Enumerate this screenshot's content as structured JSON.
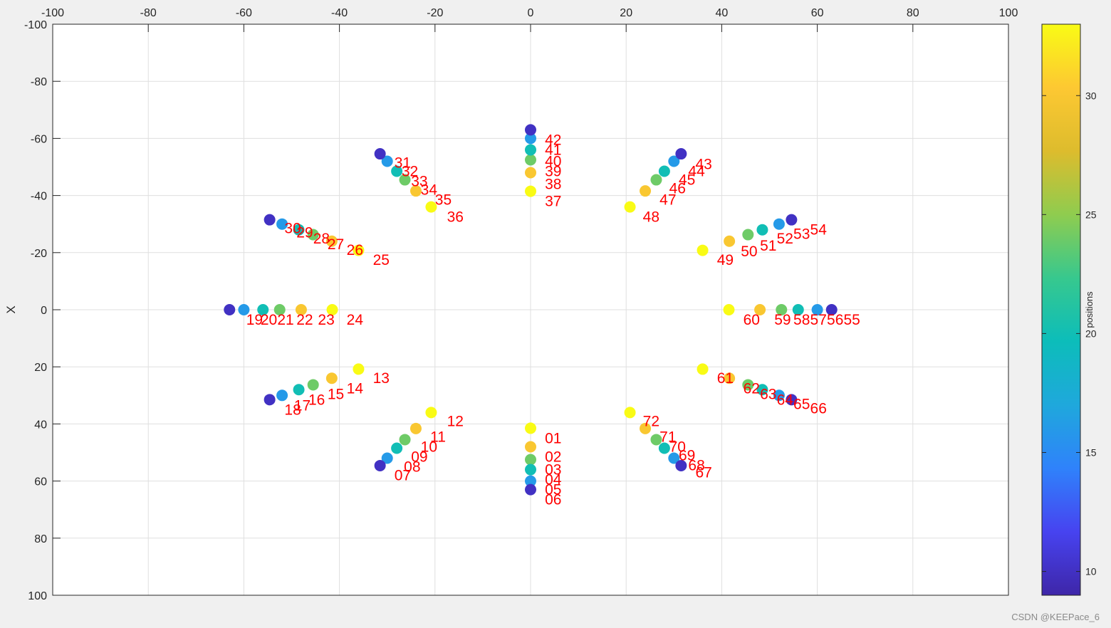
{
  "watermark": "CSDN @KEEPace_6",
  "colors": {
    "label": "#ff0000",
    "grid": "#dfdfdf",
    "axis": "#262626"
  },
  "chart_data": {
    "type": "scatter",
    "xlim": [
      -100,
      100
    ],
    "ylim": [
      -100,
      100
    ],
    "x_axis_location": "top",
    "y_direction": "reverse",
    "xticks": [
      "-100",
      "-80",
      "-60",
      "-40",
      "-20",
      "0",
      "20",
      "40",
      "60",
      "80",
      "100"
    ],
    "yticks": [
      "-100",
      "-80",
      "-60",
      "-40",
      "-20",
      "0",
      "20",
      "40",
      "60",
      "80",
      "100"
    ],
    "ylabel": "X",
    "grid": true,
    "colorbar": {
      "label": "positions",
      "range": [
        9,
        33
      ],
      "ticks": [
        "10",
        "15",
        "20",
        "25",
        "30"
      ],
      "colormap": [
        "#3e26a8",
        "#4743f0",
        "#2f82fb",
        "#1fa8dc",
        "#0cbdba",
        "#37c88e",
        "#8fcc4f",
        "#ddbc2d",
        "#fdc832",
        "#f9fb15"
      ]
    },
    "points": [
      {
        "x": 0,
        "y": 41.5,
        "c": 33
      },
      {
        "x": 0,
        "y": 48,
        "c": 30
      },
      {
        "x": 0,
        "y": 52.5,
        "c": 24
      },
      {
        "x": 0,
        "y": 56,
        "c": 20
      },
      {
        "x": 0,
        "y": 60,
        "c": 16
      },
      {
        "x": 0,
        "y": 63,
        "c": 10
      },
      {
        "x": 0,
        "y": -41.5,
        "c": 33
      },
      {
        "x": 0,
        "y": -48,
        "c": 30
      },
      {
        "x": 0,
        "y": -52.5,
        "c": 24
      },
      {
        "x": 0,
        "y": -56,
        "c": 20
      },
      {
        "x": 0,
        "y": -60,
        "c": 16
      },
      {
        "x": 0,
        "y": -63,
        "c": 10
      },
      {
        "x": -41.5,
        "y": 0,
        "c": 33
      },
      {
        "x": -48,
        "y": 0,
        "c": 30
      },
      {
        "x": -52.5,
        "y": 0,
        "c": 24
      },
      {
        "x": -56,
        "y": 0,
        "c": 20
      },
      {
        "x": -60,
        "y": 0,
        "c": 16
      },
      {
        "x": -63,
        "y": 0,
        "c": 10
      },
      {
        "x": 41.5,
        "y": 0,
        "c": 33
      },
      {
        "x": 48,
        "y": 0,
        "c": 30
      },
      {
        "x": 52.5,
        "y": 0,
        "c": 24
      },
      {
        "x": 56,
        "y": 0,
        "c": 20
      },
      {
        "x": 60,
        "y": 0,
        "c": 16
      },
      {
        "x": 63,
        "y": 0,
        "c": 10
      },
      {
        "x": -20.8,
        "y": 36,
        "c": 33
      },
      {
        "x": -24,
        "y": 41.6,
        "c": 30
      },
      {
        "x": -26.3,
        "y": 45.5,
        "c": 24
      },
      {
        "x": -28,
        "y": 48.5,
        "c": 20
      },
      {
        "x": -30,
        "y": 52,
        "c": 16
      },
      {
        "x": -31.5,
        "y": 54.6,
        "c": 10
      },
      {
        "x": 20.8,
        "y": 36,
        "c": 33
      },
      {
        "x": 24,
        "y": 41.6,
        "c": 30
      },
      {
        "x": 26.3,
        "y": 45.5,
        "c": 24
      },
      {
        "x": 28,
        "y": 48.5,
        "c": 20
      },
      {
        "x": 30,
        "y": 52,
        "c": 16
      },
      {
        "x": 31.5,
        "y": 54.6,
        "c": 10
      },
      {
        "x": -20.8,
        "y": -36,
        "c": 33
      },
      {
        "x": -24,
        "y": -41.6,
        "c": 30
      },
      {
        "x": -26.3,
        "y": -45.5,
        "c": 24
      },
      {
        "x": -28,
        "y": -48.5,
        "c": 20
      },
      {
        "x": -30,
        "y": -52,
        "c": 16
      },
      {
        "x": -31.5,
        "y": -54.6,
        "c": 10
      },
      {
        "x": 20.8,
        "y": -36,
        "c": 33
      },
      {
        "x": 24,
        "y": -41.6,
        "c": 30
      },
      {
        "x": 26.3,
        "y": -45.5,
        "c": 24
      },
      {
        "x": 28,
        "y": -48.5,
        "c": 20
      },
      {
        "x": 30,
        "y": -52,
        "c": 16
      },
      {
        "x": 31.5,
        "y": -54.6,
        "c": 10
      },
      {
        "x": -36,
        "y": 20.8,
        "c": 33
      },
      {
        "x": -41.6,
        "y": 24,
        "c": 30
      },
      {
        "x": -45.5,
        "y": 26.3,
        "c": 24
      },
      {
        "x": -48.5,
        "y": 28,
        "c": 20
      },
      {
        "x": -52,
        "y": 30,
        "c": 16
      },
      {
        "x": -54.6,
        "y": 31.5,
        "c": 10
      },
      {
        "x": 36,
        "y": 20.8,
        "c": 33
      },
      {
        "x": 41.6,
        "y": 24,
        "c": 30
      },
      {
        "x": 45.5,
        "y": 26.3,
        "c": 24
      },
      {
        "x": 48.5,
        "y": 28,
        "c": 20
      },
      {
        "x": 52,
        "y": 30,
        "c": 16
      },
      {
        "x": 54.6,
        "y": 31.5,
        "c": 10
      },
      {
        "x": -36,
        "y": -20.8,
        "c": 33
      },
      {
        "x": -41.6,
        "y": -24,
        "c": 30
      },
      {
        "x": -45.5,
        "y": -26.3,
        "c": 24
      },
      {
        "x": -48.5,
        "y": -28,
        "c": 20
      },
      {
        "x": -52,
        "y": -30,
        "c": 16
      },
      {
        "x": -54.6,
        "y": -31.5,
        "c": 10
      },
      {
        "x": 36,
        "y": -20.8,
        "c": 33
      },
      {
        "x": 41.6,
        "y": -24,
        "c": 30
      },
      {
        "x": 45.5,
        "y": -26.3,
        "c": 24
      },
      {
        "x": 48.5,
        "y": -28,
        "c": 20
      },
      {
        "x": 52,
        "y": -30,
        "c": 16
      },
      {
        "x": 54.6,
        "y": -31.5,
        "c": 10
      }
    ],
    "labels": [
      {
        "t": "01",
        "x": 3,
        "y": 45
      },
      {
        "t": "02",
        "x": 3,
        "y": 51.5
      },
      {
        "t": "03",
        "x": 3,
        "y": 56
      },
      {
        "t": "04",
        "x": 3,
        "y": 59.5
      },
      {
        "t": "05",
        "x": 3,
        "y": 63
      },
      {
        "t": "06",
        "x": 3,
        "y": 66.5
      },
      {
        "t": "07",
        "x": -28.5,
        "y": 58
      },
      {
        "t": "08",
        "x": -26.5,
        "y": 55
      },
      {
        "t": "09",
        "x": -25,
        "y": 51.5
      },
      {
        "t": "10",
        "x": -23,
        "y": 48
      },
      {
        "t": "11",
        "x": -21,
        "y": 44.5
      },
      {
        "t": "12",
        "x": -17.5,
        "y": 39
      },
      {
        "t": "13",
        "x": -33,
        "y": 24
      },
      {
        "t": "14",
        "x": -38.5,
        "y": 27.5
      },
      {
        "t": "15",
        "x": -42.5,
        "y": 29.5
      },
      {
        "t": "16",
        "x": -46.5,
        "y": 31.5
      },
      {
        "t": "17",
        "x": -49.5,
        "y": 33.5
      },
      {
        "t": "18",
        "x": -51.5,
        "y": 35
      },
      {
        "t": "19",
        "x": -59.5,
        "y": 3.5
      },
      {
        "t": "20",
        "x": -56.5,
        "y": 3.5
      },
      {
        "t": "21",
        "x": -53,
        "y": 3.5
      },
      {
        "t": "22",
        "x": -49,
        "y": 3.5
      },
      {
        "t": "23",
        "x": -44.5,
        "y": 3.5
      },
      {
        "t": "24",
        "x": -38.5,
        "y": 3.5
      },
      {
        "t": "25",
        "x": -33,
        "y": -17.5
      },
      {
        "t": "26",
        "x": -38.5,
        "y": -21
      },
      {
        "t": "27",
        "x": -42.5,
        "y": -23
      },
      {
        "t": "28",
        "x": -45.5,
        "y": -25
      },
      {
        "t": "29",
        "x": -49,
        "y": -27
      },
      {
        "t": "30",
        "x": -51.5,
        "y": -28.5
      },
      {
        "t": "31",
        "x": -28.5,
        "y": -51.5
      },
      {
        "t": "32",
        "x": -27,
        "y": -48.5
      },
      {
        "t": "33",
        "x": -25,
        "y": -45
      },
      {
        "t": "34",
        "x": -23,
        "y": -42
      },
      {
        "t": "35",
        "x": -20,
        "y": -38.5
      },
      {
        "t": "36",
        "x": -17.5,
        "y": -32.5
      },
      {
        "t": "37",
        "x": 3,
        "y": -38
      },
      {
        "t": "38",
        "x": 3,
        "y": -44
      },
      {
        "t": "39",
        "x": 3,
        "y": -48.5
      },
      {
        "t": "40",
        "x": 3,
        "y": -52
      },
      {
        "t": "41",
        "x": 3,
        "y": -56
      },
      {
        "t": "42",
        "x": 3,
        "y": -59.5
      },
      {
        "t": "43",
        "x": 34.5,
        "y": -51
      },
      {
        "t": "44",
        "x": 33,
        "y": -48.5
      },
      {
        "t": "45",
        "x": 31,
        "y": -45.5
      },
      {
        "t": "46",
        "x": 29,
        "y": -42.5
      },
      {
        "t": "47",
        "x": 27,
        "y": -38.5
      },
      {
        "t": "48",
        "x": 23.5,
        "y": -32.5
      },
      {
        "t": "49",
        "x": 39,
        "y": -17.5
      },
      {
        "t": "50",
        "x": 44,
        "y": -20.5
      },
      {
        "t": "51",
        "x": 48,
        "y": -22.5
      },
      {
        "t": "52",
        "x": 51.5,
        "y": -25
      },
      {
        "t": "53",
        "x": 55,
        "y": -26.5
      },
      {
        "t": "54",
        "x": 58.5,
        "y": -28
      },
      {
        "t": "55",
        "x": 65.5,
        "y": 3.5
      },
      {
        "t": "56",
        "x": 62,
        "y": 3.5
      },
      {
        "t": "57",
        "x": 58.5,
        "y": 3.5
      },
      {
        "t": "58",
        "x": 55,
        "y": 3.5
      },
      {
        "t": "59",
        "x": 51,
        "y": 3.5
      },
      {
        "t": "60",
        "x": 44.5,
        "y": 3.5
      },
      {
        "t": "61",
        "x": 39,
        "y": 24
      },
      {
        "t": "62",
        "x": 44.5,
        "y": 27.5
      },
      {
        "t": "63",
        "x": 48,
        "y": 29.5
      },
      {
        "t": "64",
        "x": 51.5,
        "y": 31.5
      },
      {
        "t": "65",
        "x": 55,
        "y": 33
      },
      {
        "t": "66",
        "x": 58.5,
        "y": 34.5
      },
      {
        "t": "67",
        "x": 34.5,
        "y": 57
      },
      {
        "t": "68",
        "x": 33,
        "y": 54.5
      },
      {
        "t": "69",
        "x": 31,
        "y": 51
      },
      {
        "t": "70",
        "x": 29,
        "y": 48
      },
      {
        "t": "71",
        "x": 27,
        "y": 44.5
      },
      {
        "t": "72",
        "x": 23.5,
        "y": 39
      }
    ]
  }
}
